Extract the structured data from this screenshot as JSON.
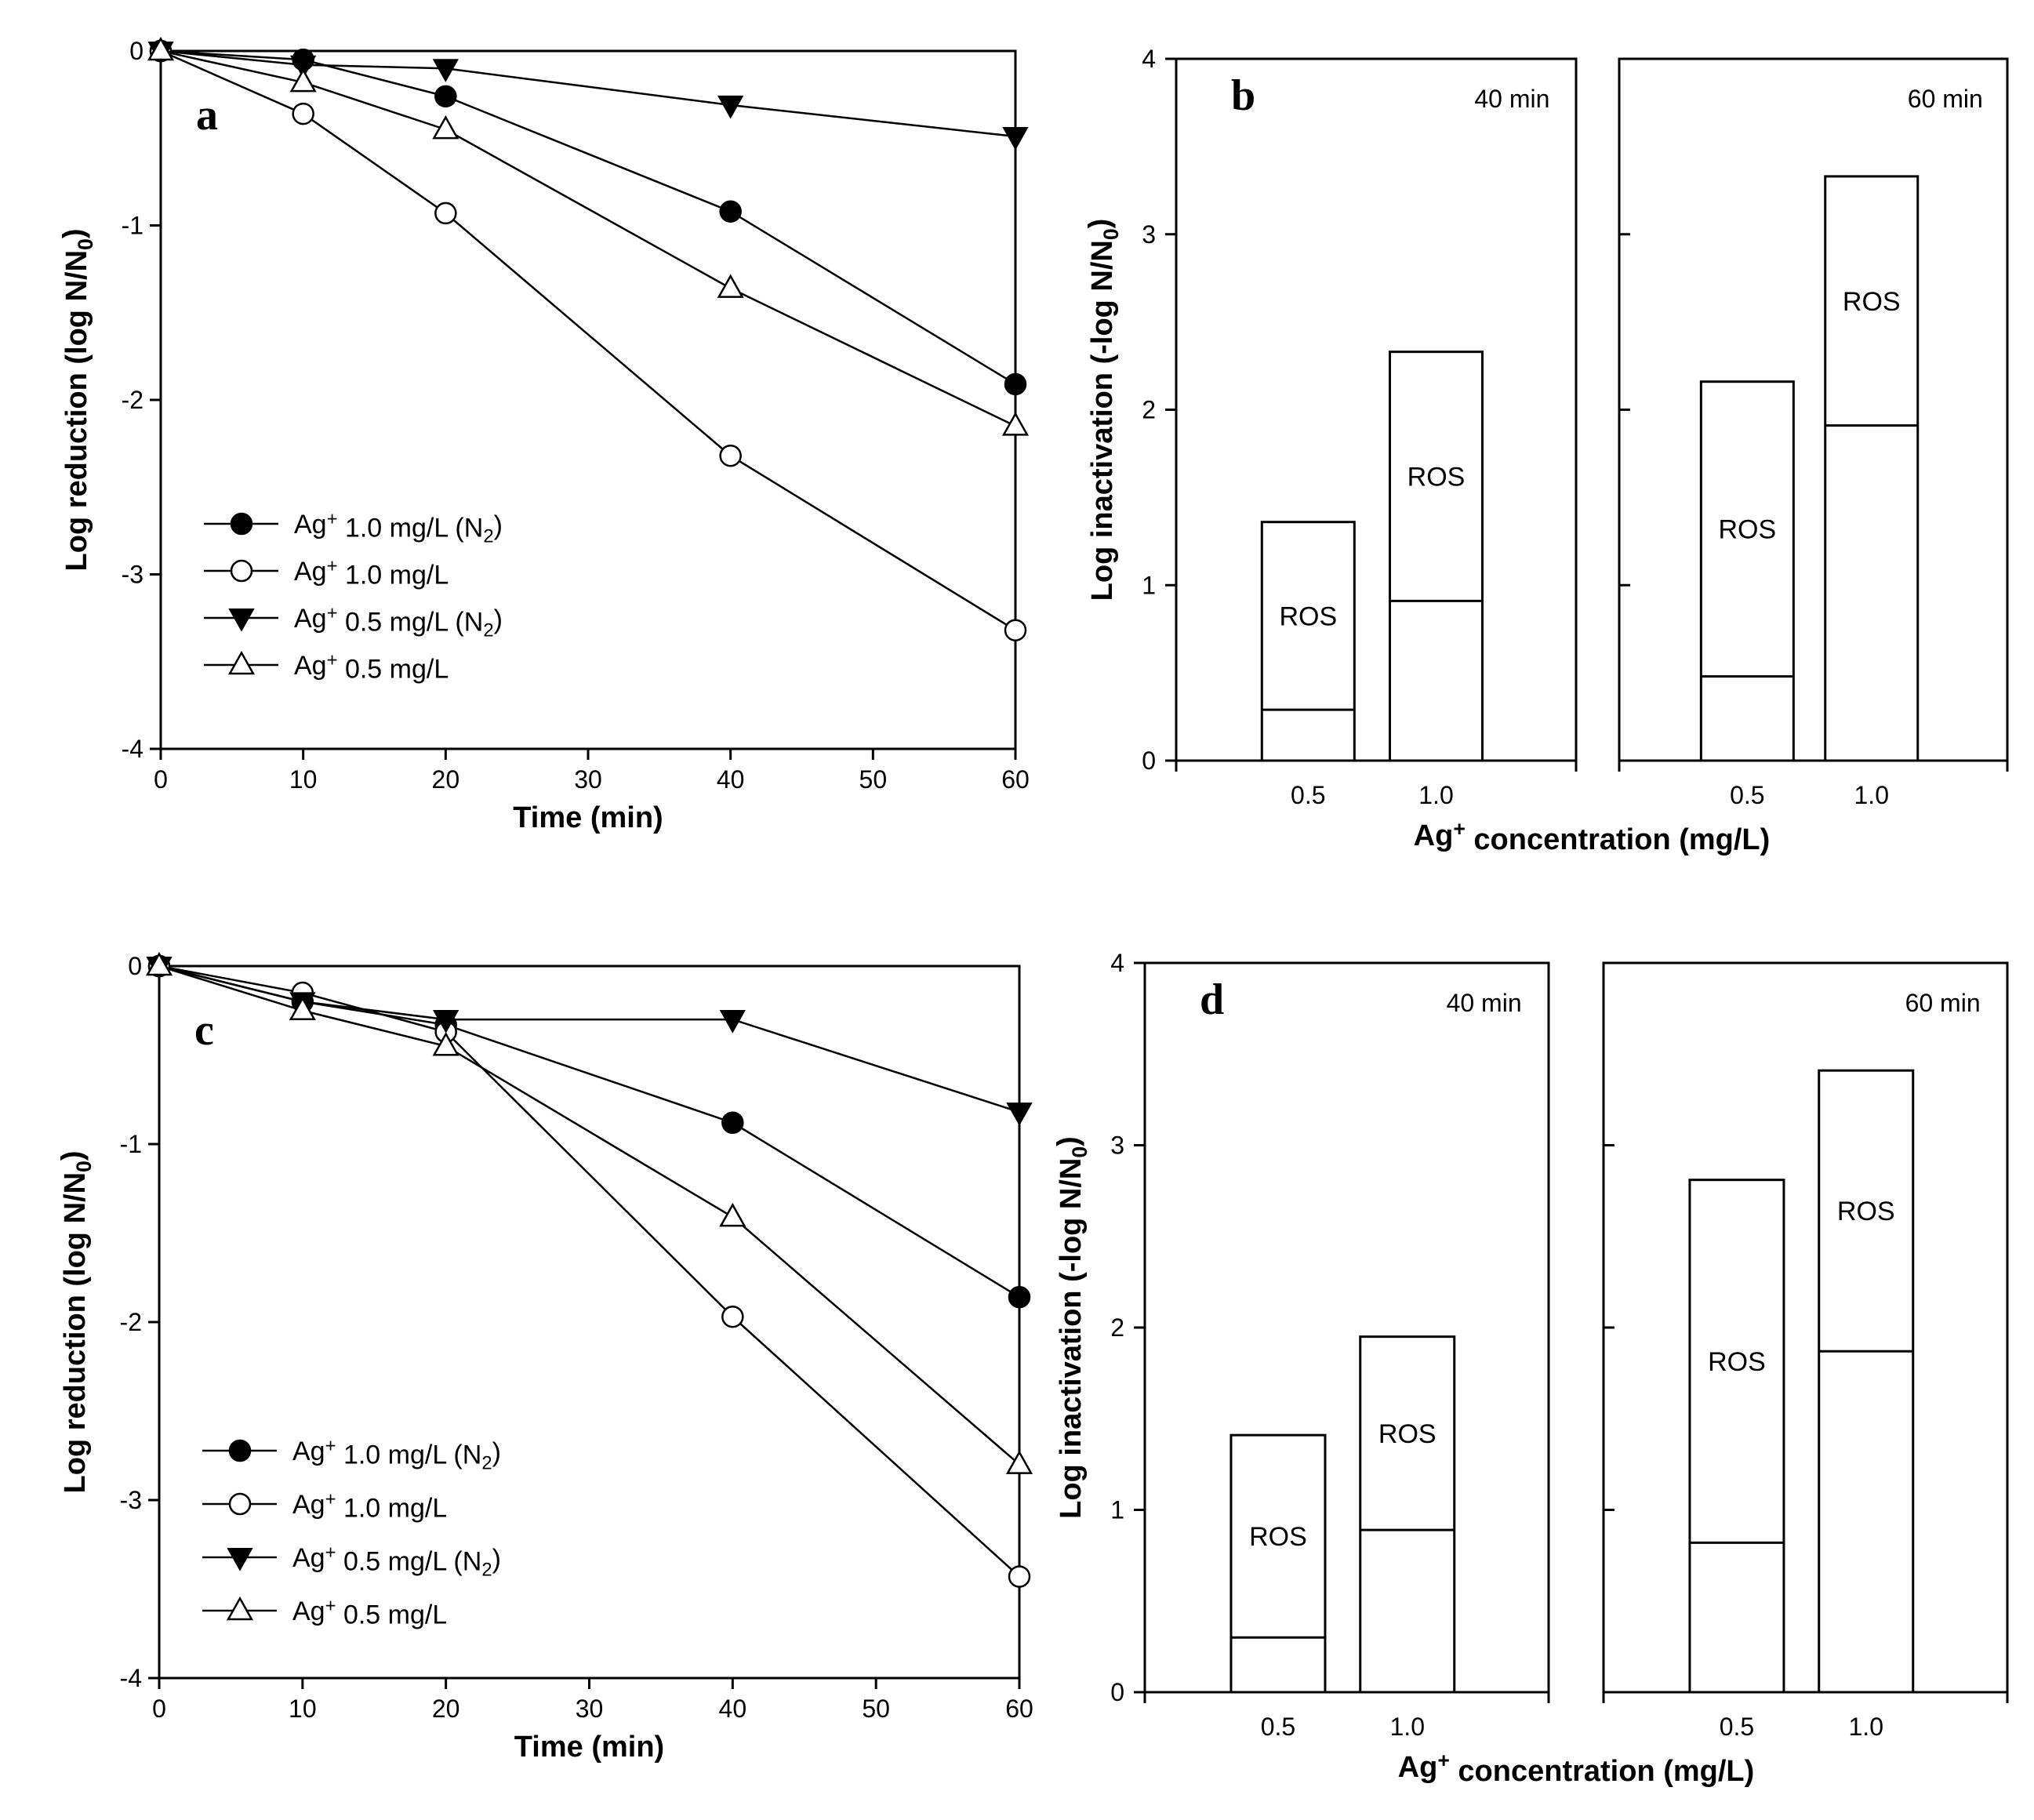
{
  "chart_data": [
    {
      "panel": "a",
      "type": "line",
      "xlabel": "Time (min)",
      "ylabel": "Log reduction (log N/N0)",
      "xlim": [
        0,
        60
      ],
      "ylim": [
        -4,
        0
      ],
      "xticks": [
        0,
        10,
        20,
        30,
        40,
        50,
        60
      ],
      "yticks": [
        0,
        -1,
        -2,
        -3,
        -4
      ],
      "x": [
        0,
        10,
        20,
        40,
        60
      ],
      "series": [
        {
          "name": "Ag+ 1.0 mg/L (N2)",
          "marker": "filled-circle",
          "values": [
            0,
            -0.05,
            -0.26,
            -0.92,
            -1.91
          ]
        },
        {
          "name": "Ag+ 1.0 mg/L",
          "marker": "open-circle",
          "values": [
            0,
            -0.36,
            -0.93,
            -2.32,
            -3.32
          ]
        },
        {
          "name": "Ag+ 0.5 mg/L (N2)",
          "marker": "filled-triangle-down",
          "values": [
            0,
            -0.08,
            -0.1,
            -0.31,
            -0.49
          ]
        },
        {
          "name": "Ag+ 0.5 mg/L",
          "marker": "open-triangle-up",
          "values": [
            0,
            -0.18,
            -0.45,
            -1.36,
            -2.15
          ]
        }
      ]
    },
    {
      "panel": "b",
      "type": "bar",
      "xlabel": "Ag+ concentration (mg/L)",
      "ylabel": "Log inactivation (-log N/N0)",
      "ylim": [
        0,
        4
      ],
      "yticks": [
        0,
        1,
        2,
        3,
        4
      ],
      "categories": [
        "0.5",
        "1.0"
      ],
      "segment_label": "ROS",
      "groups": [
        {
          "label": "40 min",
          "totals": [
            1.36,
            2.33
          ],
          "lower": [
            0.29,
            0.91
          ]
        },
        {
          "label": "60 min",
          "totals": [
            2.16,
            3.33
          ],
          "lower": [
            0.48,
            1.91
          ]
        }
      ]
    },
    {
      "panel": "c",
      "type": "line",
      "xlabel": "Time (min)",
      "ylabel": "Log reduction (log N/N0)",
      "xlim": [
        0,
        60
      ],
      "ylim": [
        -4,
        0
      ],
      "xticks": [
        0,
        10,
        20,
        30,
        40,
        50,
        60
      ],
      "yticks": [
        0,
        -1,
        -2,
        -3,
        -4
      ],
      "x": [
        0,
        10,
        20,
        40,
        60
      ],
      "series": [
        {
          "name": "Ag+ 1.0 mg/L (N2)",
          "marker": "filled-circle",
          "values": [
            0,
            -0.2,
            -0.33,
            -0.88,
            -1.86
          ]
        },
        {
          "name": "Ag+ 1.0 mg/L",
          "marker": "open-circle",
          "values": [
            0,
            -0.15,
            -0.37,
            -1.97,
            -3.43
          ]
        },
        {
          "name": "Ag+ 0.5 mg/L (N2)",
          "marker": "filled-triangle-down",
          "values": [
            0,
            -0.2,
            -0.3,
            -0.3,
            -0.82
          ]
        },
        {
          "name": "Ag+ 0.5 mg/L",
          "marker": "open-triangle-up",
          "values": [
            0,
            -0.25,
            -0.45,
            -1.41,
            -2.8
          ]
        }
      ]
    },
    {
      "panel": "d",
      "type": "bar",
      "xlabel": "Ag+ concentration (mg/L)",
      "ylabel": "Log inactivation (-log N/N0)",
      "ylim": [
        0,
        4
      ],
      "yticks": [
        0,
        1,
        2,
        3,
        4
      ],
      "categories": [
        "0.5",
        "1.0"
      ],
      "segment_label": "ROS",
      "groups": [
        {
          "label": "40 min",
          "totals": [
            1.41,
            1.95
          ],
          "lower": [
            0.3,
            0.89
          ]
        },
        {
          "label": "60 min",
          "totals": [
            2.81,
            3.41
          ],
          "lower": [
            0.82,
            1.87
          ]
        }
      ]
    }
  ]
}
